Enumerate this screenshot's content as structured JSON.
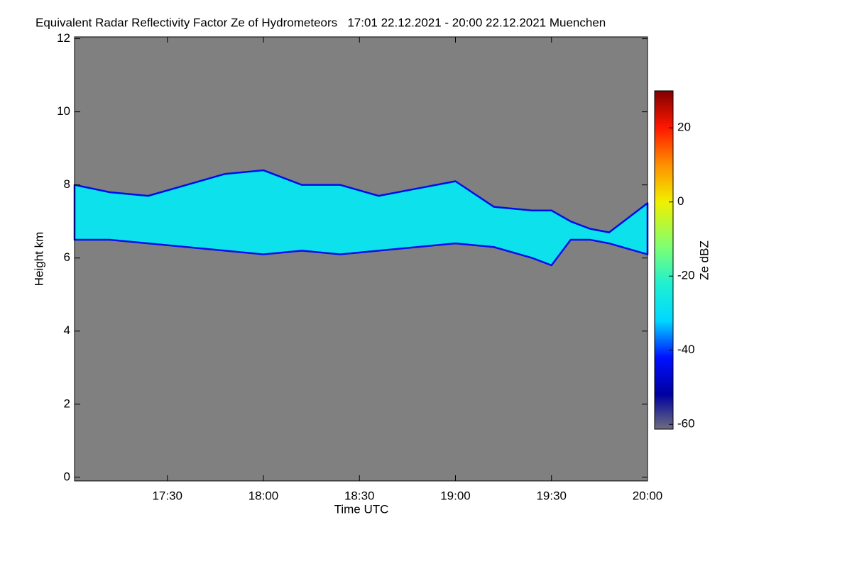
{
  "chart_data": {
    "type": "heatmap-band",
    "title": "Equivalent Radar Reflectivity Factor Ze of Hydrometeors   17:01 22.12.2021 - 20:00 22.12.2021 Muenchen",
    "x_label": "Time UTC",
    "y_label": "Height km",
    "colorbar_label": "Ze dBZ",
    "background": "#808080",
    "xlim": [
      17.0167,
      20.0
    ],
    "xticks": [
      {
        "value": 17.5,
        "label": "17:30"
      },
      {
        "value": 18.0,
        "label": "18:00"
      },
      {
        "value": 18.5,
        "label": "18:30"
      },
      {
        "value": 19.0,
        "label": "19:00"
      },
      {
        "value": 19.5,
        "label": "19:30"
      },
      {
        "value": 20.0,
        "label": "20:00"
      }
    ],
    "ylim": [
      -0.1,
      12.05
    ],
    "yticks": [
      0,
      2,
      4,
      6,
      8,
      10,
      12
    ],
    "x": [
      17.0167,
      17.2,
      17.4,
      17.6,
      17.8,
      18.0,
      18.2,
      18.4,
      18.6,
      18.8,
      19.0,
      19.2,
      19.4,
      19.5,
      19.6,
      19.7,
      19.8,
      20.0
    ],
    "series": [
      {
        "name": "cloud top",
        "values": [
          8.0,
          7.8,
          7.7,
          8.0,
          8.3,
          8.4,
          8.0,
          8.0,
          7.7,
          7.9,
          8.1,
          7.4,
          7.3,
          7.3,
          7.0,
          6.8,
          6.7,
          7.5
        ]
      },
      {
        "name": "cloud base",
        "values": [
          6.5,
          6.5,
          6.4,
          6.3,
          6.2,
          6.1,
          6.2,
          6.1,
          6.2,
          6.3,
          6.4,
          6.3,
          6.0,
          5.8,
          6.5,
          6.5,
          6.4,
          6.1
        ]
      }
    ],
    "band_dbz": -28,
    "clim": [
      -61.3,
      30
    ],
    "cticks": [
      -60,
      -40,
      -20,
      0,
      20
    ],
    "colormap": [
      {
        "value": -61.3,
        "color": "#6e6e80"
      },
      {
        "value": -52,
        "color": "#0000a0"
      },
      {
        "value": -42,
        "color": "#0010ff"
      },
      {
        "value": -32,
        "color": "#00d8ff"
      },
      {
        "value": -22,
        "color": "#20f0d0"
      },
      {
        "value": -12,
        "color": "#80ff70"
      },
      {
        "value": 0,
        "color": "#f0f000"
      },
      {
        "value": 10,
        "color": "#ff9000"
      },
      {
        "value": 20,
        "color": "#ff1800"
      },
      {
        "value": 30,
        "color": "#800000"
      }
    ]
  }
}
